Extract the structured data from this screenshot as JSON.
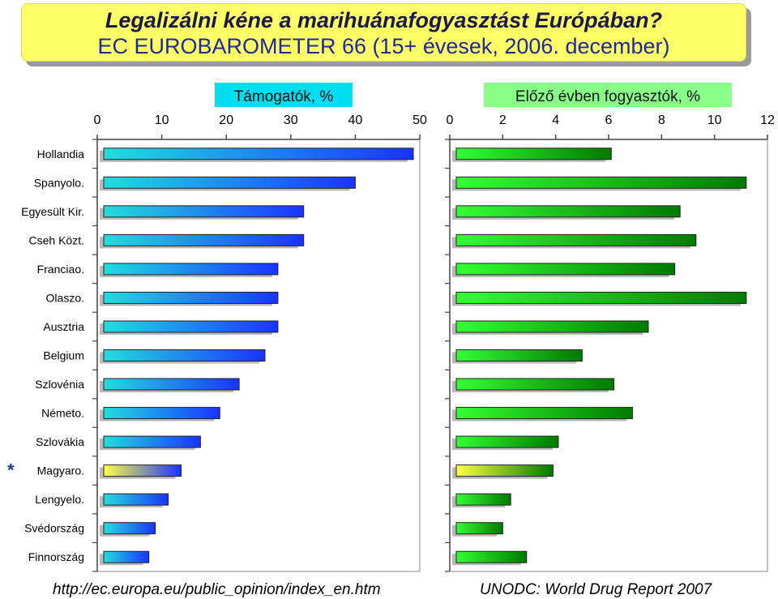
{
  "title": {
    "line1": "Legalizálni kéne a marihuánafogyasztást Európában?",
    "line2": "EC EUROBAROMETER 66 (15+ évesek, 2006. december)"
  },
  "sources": {
    "left": "http://ec.europa.eu/public_opinion/index_en.htm",
    "right": "UNODC: World Drug Report 2007"
  },
  "highlight_marker": "*",
  "colors": {
    "title_bg": "#ffff66",
    "support_bar_start": "#22dddd",
    "support_bar_end": "#1a33ff",
    "users_bar_start": "#33ff33",
    "users_bar_end": "#007a00",
    "highlight_start": "#ffff44"
  },
  "chart_data": [
    {
      "type": "bar",
      "orientation": "horizontal",
      "title": "Támogatók, %",
      "categories": [
        "Hollandia",
        "Spanyolo.",
        "Egyesült Kir.",
        "Cseh Közt.",
        "Franciao.",
        "Olaszo.",
        "Ausztria",
        "Belgium",
        "Szlovénia",
        "Németo.",
        "Szlovákia",
        "Magyaro.",
        "Lengyelo.",
        "Svédország",
        "Finnország"
      ],
      "values": [
        49,
        40,
        32,
        32,
        28,
        28,
        28,
        26,
        22,
        19,
        16,
        13,
        11,
        9,
        8
      ],
      "xlim": [
        0,
        50
      ],
      "ticks": [
        0,
        10,
        20,
        30,
        40,
        50
      ],
      "highlight_category": "Magyaro."
    },
    {
      "type": "bar",
      "orientation": "horizontal",
      "title": "Előző évben fogyasztók, %",
      "categories": [
        "Hollandia",
        "Spanyolo.",
        "Egyesült Kir.",
        "Cseh Közt.",
        "Franciao.",
        "Olaszo.",
        "Ausztria",
        "Belgium",
        "Szlovénia",
        "Németo.",
        "Szlovákia",
        "Magyaro.",
        "Lengyelo.",
        "Svédország",
        "Finnország"
      ],
      "values": [
        6.1,
        11.2,
        8.7,
        9.3,
        8.5,
        11.2,
        7.5,
        5.0,
        6.2,
        6.9,
        4.1,
        3.9,
        2.3,
        2.0,
        2.9
      ],
      "xlim": [
        0,
        12
      ],
      "ticks": [
        0,
        2,
        4,
        6,
        8,
        10,
        12
      ],
      "highlight_category": "Magyaro."
    }
  ]
}
